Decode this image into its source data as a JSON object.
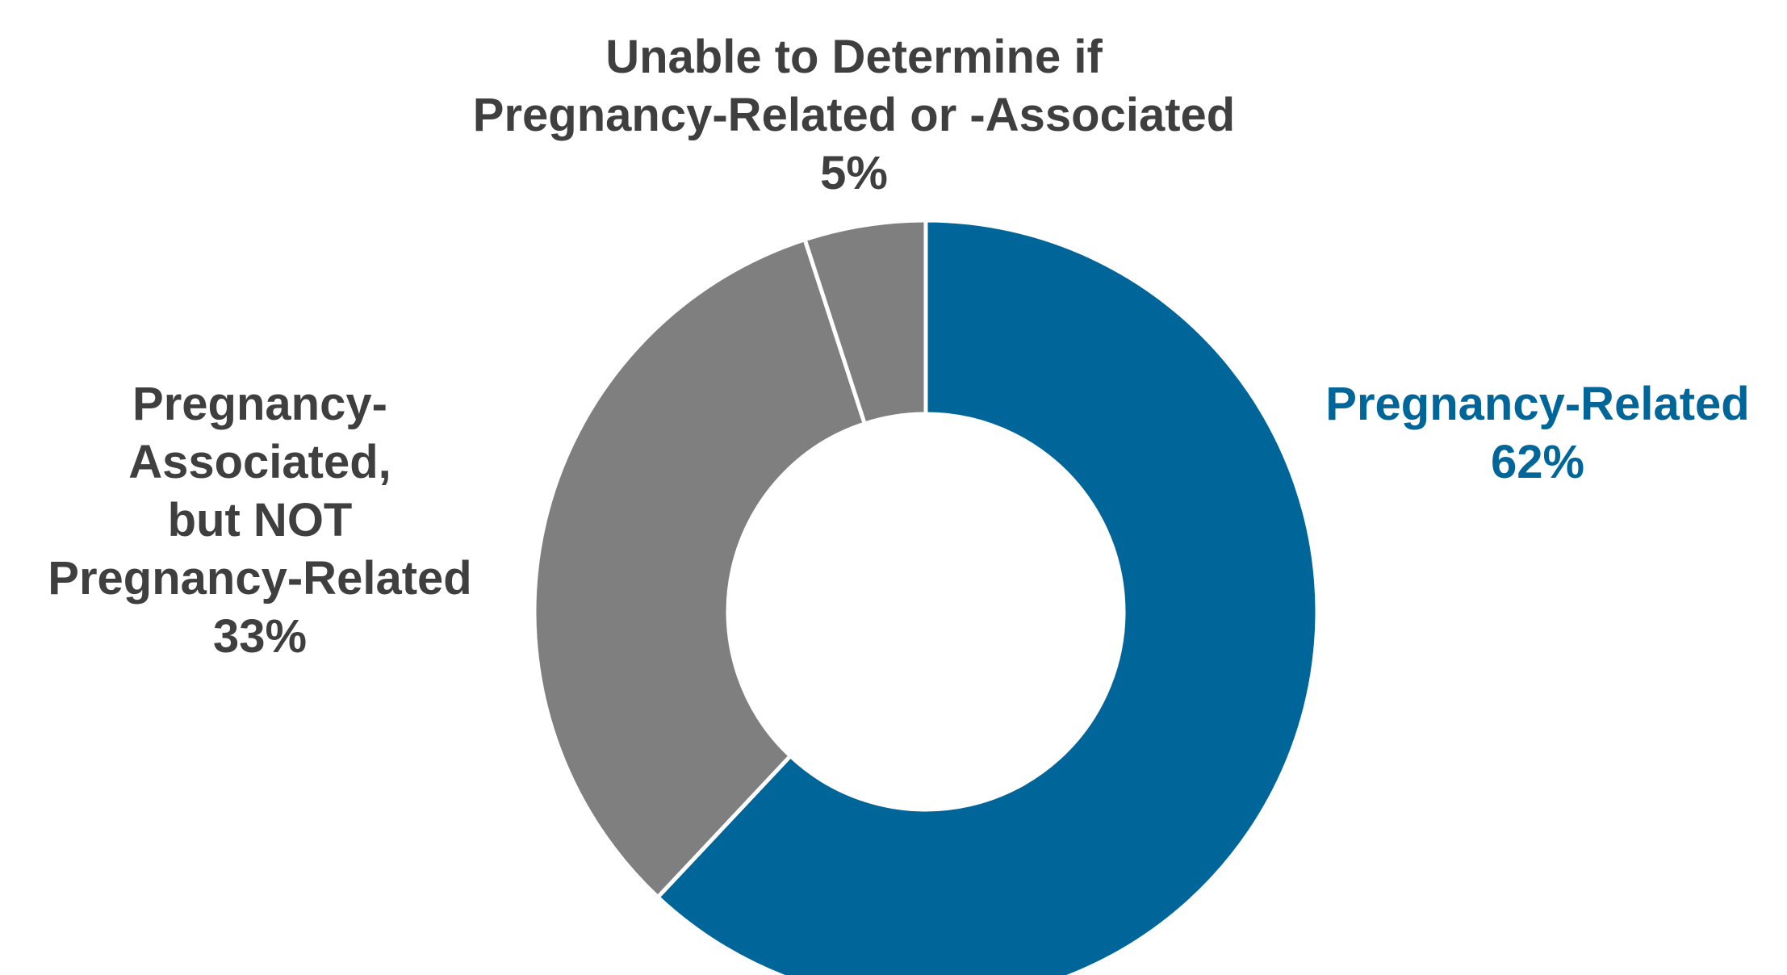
{
  "chart_data": {
    "type": "pie",
    "donut": true,
    "title": "",
    "slices": [
      {
        "label_lines": [
          "Pregnancy-Related"
        ],
        "value": 62,
        "value_label": "62%",
        "color": "#006699",
        "label_color": "#006699",
        "label_position": "right"
      },
      {
        "label_lines": [
          "Pregnancy-",
          "Associated,",
          "but NOT",
          "Pregnancy-Related"
        ],
        "value": 33,
        "value_label": "33%",
        "color": "#7f7f7f",
        "label_color": "#3f3f3f",
        "label_position": "left"
      },
      {
        "label_lines": [
          "Unable to Determine if",
          "Pregnancy-Related or -Associated"
        ],
        "value": 5,
        "value_label": "5%",
        "color": "#7f7f7f",
        "label_color": "#3f3f3f",
        "label_position": "top"
      }
    ],
    "start_direction": "top",
    "slice_order": "clockwise",
    "legend": "none",
    "separator_color": "#ffffff"
  }
}
